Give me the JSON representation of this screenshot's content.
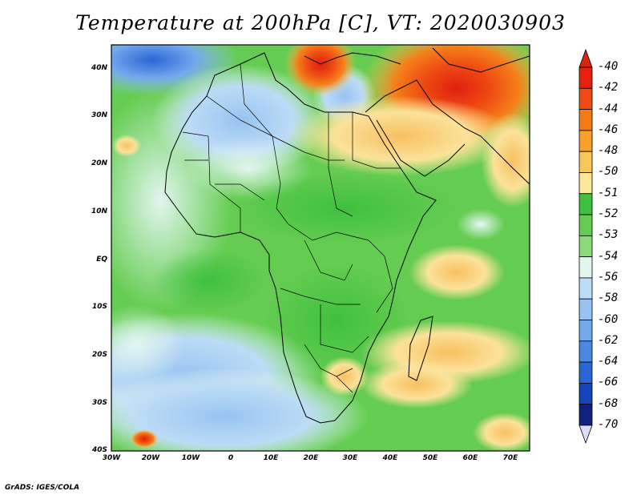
{
  "title": "Temperature at 200hPa [C], VT: 2020030903",
  "credit": "GrADS: IGES/COLA",
  "map": {
    "lat_labels": [
      "40N",
      "30N",
      "20N",
      "10N",
      "EQ",
      "10S",
      "20S",
      "30S",
      "40S"
    ],
    "lon_labels": [
      "30W",
      "20W",
      "10W",
      "0",
      "10E",
      "20E",
      "30E",
      "40E",
      "50E",
      "60E",
      "70E"
    ],
    "lat_range": [
      -40,
      45
    ],
    "lon_range": [
      -30,
      75
    ]
  },
  "colorbar": {
    "labels": [
      "-40",
      "-42",
      "-44",
      "-46",
      "-48",
      "-50",
      "-51",
      "-52",
      "-53",
      "-54",
      "-56",
      "-58",
      "-60",
      "-62",
      "-64",
      "-66",
      "-68",
      "-70"
    ],
    "colors": [
      "#e8200f",
      "#f24a12",
      "#f57a14",
      "#f7a12a",
      "#f8c75a",
      "#fbe89a",
      "#3fc03f",
      "#64cc50",
      "#8cd87a",
      "#e2f6f0",
      "#bcdcf6",
      "#98c3f1",
      "#73a8ec",
      "#4b88e4",
      "#2a66d6",
      "#1446bb",
      "#10207e"
    ],
    "top_arrow_color": "#d8250f",
    "bottom_arrow_color": "#dcdcf8"
  }
}
